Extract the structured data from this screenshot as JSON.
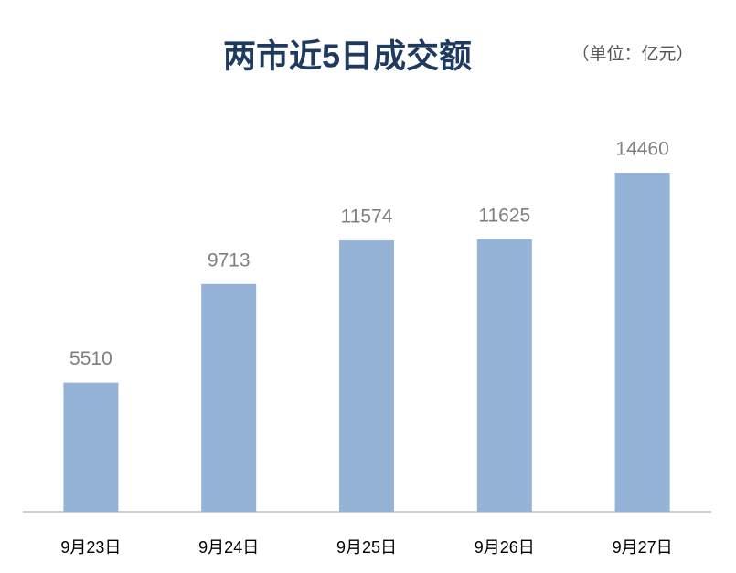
{
  "chart_data": {
    "type": "bar",
    "title": "两市近5日成交额",
    "subtitle": "（单位：亿元）",
    "categories": [
      "9月23日",
      "9月24日",
      "9月25日",
      "9月26日",
      "9月27日"
    ],
    "values": [
      5510,
      9713,
      11574,
      11625,
      14460
    ],
    "color": "#95b3d7"
  }
}
